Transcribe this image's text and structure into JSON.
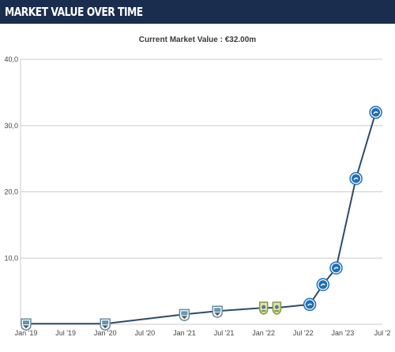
{
  "header": {
    "title": "MARKET VALUE OVER TIME"
  },
  "subtitle": {
    "label": "Current Market Value : €32.00m"
  },
  "colors": {
    "header_bg": "#1b2d4e",
    "line": "#2e4a6b",
    "gridline": "#cccccc",
    "marker_default": "#1f6fb5",
    "marker_early": "#6a8a9a",
    "marker_mid": "#7c9a4a"
  },
  "chart_data": {
    "type": "line",
    "title": "",
    "xlabel": "",
    "ylabel": "",
    "ylim": [
      0,
      40
    ],
    "yticks": [
      "10,0",
      "20,0",
      "30,0",
      "40,0"
    ],
    "ytick_values": [
      10,
      20,
      30,
      40
    ],
    "xticks": [
      "Jan '19",
      "Jul '19",
      "Jan '20",
      "Jul '20",
      "Jan '21",
      "Jul '21",
      "Jan '22",
      "Jul '22",
      "Jan '23",
      "Jul '2"
    ],
    "xtick_dates": [
      "2019-01",
      "2019-07",
      "2020-01",
      "2020-07",
      "2021-01",
      "2021-07",
      "2022-01",
      "2022-07",
      "2023-01",
      "2023-07"
    ],
    "grid": true,
    "series": [
      {
        "points": [
          {
            "date": "2019-01",
            "value": 0.1,
            "icon": "early-club-crest-icon"
          },
          {
            "date": "2020-01",
            "value": 0.1,
            "icon": "early-club-crest-icon"
          },
          {
            "date": "2021-01",
            "value": 1.5,
            "icon": "early-club-crest-icon"
          },
          {
            "date": "2021-06",
            "value": 2.0,
            "icon": "early-club-crest-icon"
          },
          {
            "date": "2022-01",
            "value": 2.5,
            "icon": "mid-club-crest-icon"
          },
          {
            "date": "2022-03",
            "value": 2.5,
            "icon": "mid-club-crest-icon"
          },
          {
            "date": "2022-08",
            "value": 3.0,
            "icon": "current-club-crest-icon"
          },
          {
            "date": "2022-10",
            "value": 6.0,
            "icon": "current-club-crest-icon"
          },
          {
            "date": "2022-12",
            "value": 8.5,
            "icon": "current-club-crest-icon"
          },
          {
            "date": "2023-03",
            "value": 22.0,
            "icon": "current-club-crest-icon"
          },
          {
            "date": "2023-06",
            "value": 32.0,
            "icon": "current-club-crest-icon"
          }
        ]
      }
    ]
  }
}
